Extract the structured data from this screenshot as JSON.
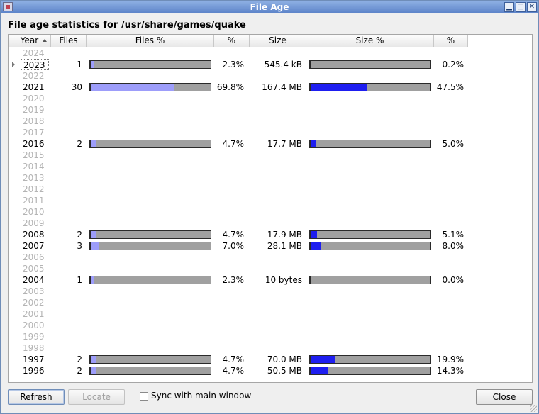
{
  "window": {
    "title": "File Age"
  },
  "heading": "File age statistics for /usr/share/games/quake",
  "columns": {
    "year": "Year",
    "files": "Files",
    "files_pct_bar": "Files %",
    "files_pct": "%",
    "size": "Size",
    "size_pct_bar": "Size %",
    "size_pct": "%"
  },
  "rows": [
    {
      "year": "2024",
      "files": "",
      "files_pct": "",
      "size": "",
      "size_pct": "",
      "files_frac": null,
      "size_frac": null
    },
    {
      "year": "2023",
      "files": "1",
      "files_pct": "2.3%",
      "size": "545.4 kB",
      "size_pct": "0.2%",
      "files_frac": 0.023,
      "size_frac": 0.002
    },
    {
      "year": "2022",
      "files": "",
      "files_pct": "",
      "size": "",
      "size_pct": "",
      "files_frac": null,
      "size_frac": null
    },
    {
      "year": "2021",
      "files": "30",
      "files_pct": "69.8%",
      "size": "167.4 MB",
      "size_pct": "47.5%",
      "files_frac": 0.698,
      "size_frac": 0.475
    },
    {
      "year": "2020",
      "files": "",
      "files_pct": "",
      "size": "",
      "size_pct": "",
      "files_frac": null,
      "size_frac": null
    },
    {
      "year": "2019",
      "files": "",
      "files_pct": "",
      "size": "",
      "size_pct": "",
      "files_frac": null,
      "size_frac": null
    },
    {
      "year": "2018",
      "files": "",
      "files_pct": "",
      "size": "",
      "size_pct": "",
      "files_frac": null,
      "size_frac": null
    },
    {
      "year": "2017",
      "files": "",
      "files_pct": "",
      "size": "",
      "size_pct": "",
      "files_frac": null,
      "size_frac": null
    },
    {
      "year": "2016",
      "files": "2",
      "files_pct": "4.7%",
      "size": "17.7 MB",
      "size_pct": "5.0%",
      "files_frac": 0.047,
      "size_frac": 0.05
    },
    {
      "year": "2015",
      "files": "",
      "files_pct": "",
      "size": "",
      "size_pct": "",
      "files_frac": null,
      "size_frac": null
    },
    {
      "year": "2014",
      "files": "",
      "files_pct": "",
      "size": "",
      "size_pct": "",
      "files_frac": null,
      "size_frac": null
    },
    {
      "year": "2013",
      "files": "",
      "files_pct": "",
      "size": "",
      "size_pct": "",
      "files_frac": null,
      "size_frac": null
    },
    {
      "year": "2012",
      "files": "",
      "files_pct": "",
      "size": "",
      "size_pct": "",
      "files_frac": null,
      "size_frac": null
    },
    {
      "year": "2011",
      "files": "",
      "files_pct": "",
      "size": "",
      "size_pct": "",
      "files_frac": null,
      "size_frac": null
    },
    {
      "year": "2010",
      "files": "",
      "files_pct": "",
      "size": "",
      "size_pct": "",
      "files_frac": null,
      "size_frac": null
    },
    {
      "year": "2009",
      "files": "",
      "files_pct": "",
      "size": "",
      "size_pct": "",
      "files_frac": null,
      "size_frac": null
    },
    {
      "year": "2008",
      "files": "2",
      "files_pct": "4.7%",
      "size": "17.9 MB",
      "size_pct": "5.1%",
      "files_frac": 0.047,
      "size_frac": 0.051
    },
    {
      "year": "2007",
      "files": "3",
      "files_pct": "7.0%",
      "size": "28.1 MB",
      "size_pct": "8.0%",
      "files_frac": 0.07,
      "size_frac": 0.08
    },
    {
      "year": "2006",
      "files": "",
      "files_pct": "",
      "size": "",
      "size_pct": "",
      "files_frac": null,
      "size_frac": null
    },
    {
      "year": "2005",
      "files": "",
      "files_pct": "",
      "size": "",
      "size_pct": "",
      "files_frac": null,
      "size_frac": null
    },
    {
      "year": "2004",
      "files": "1",
      "files_pct": "2.3%",
      "size": "10 bytes",
      "size_pct": "0.0%",
      "files_frac": 0.023,
      "size_frac": 0.0
    },
    {
      "year": "2003",
      "files": "",
      "files_pct": "",
      "size": "",
      "size_pct": "",
      "files_frac": null,
      "size_frac": null
    },
    {
      "year": "2002",
      "files": "",
      "files_pct": "",
      "size": "",
      "size_pct": "",
      "files_frac": null,
      "size_frac": null
    },
    {
      "year": "2001",
      "files": "",
      "files_pct": "",
      "size": "",
      "size_pct": "",
      "files_frac": null,
      "size_frac": null
    },
    {
      "year": "2000",
      "files": "",
      "files_pct": "",
      "size": "",
      "size_pct": "",
      "files_frac": null,
      "size_frac": null
    },
    {
      "year": "1999",
      "files": "",
      "files_pct": "",
      "size": "",
      "size_pct": "",
      "files_frac": null,
      "size_frac": null
    },
    {
      "year": "1998",
      "files": "",
      "files_pct": "",
      "size": "",
      "size_pct": "",
      "files_frac": null,
      "size_frac": null
    },
    {
      "year": "1997",
      "files": "2",
      "files_pct": "4.7%",
      "size": "70.0 MB",
      "size_pct": "19.9%",
      "files_frac": 0.047,
      "size_frac": 0.199
    },
    {
      "year": "1996",
      "files": "2",
      "files_pct": "4.7%",
      "size": "50.5 MB",
      "size_pct": "14.3%",
      "files_frac": 0.047,
      "size_frac": 0.143
    }
  ],
  "current_year": "2023",
  "buttons": {
    "refresh": "Refresh",
    "locate": "Locate",
    "close": "Close"
  },
  "sync_checkbox": {
    "label": "Sync with main window",
    "checked": false
  },
  "colors": {
    "files_bar_fill": "#9d9dfa",
    "size_bar_fill": "#1e1ef0",
    "bar_background": "#a0a0a0",
    "empty_year_text": "#b4b4b4"
  }
}
